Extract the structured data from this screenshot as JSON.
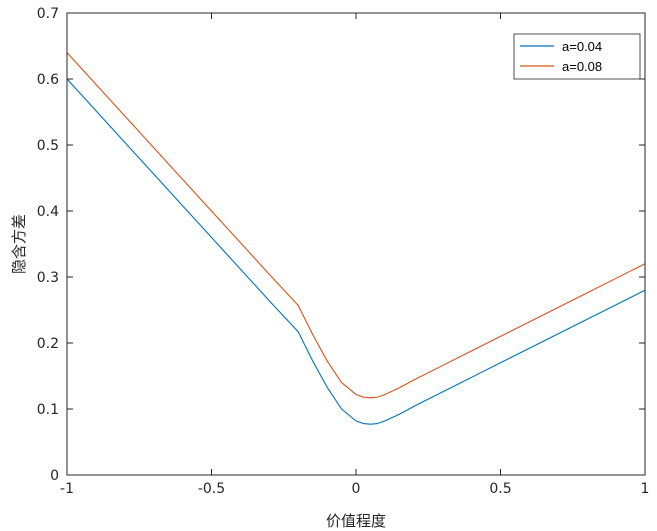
{
  "chart_data": {
    "type": "line",
    "title": "",
    "xlabel": "价值程度",
    "ylabel": "隐含方差",
    "xlim": [
      -1,
      1
    ],
    "ylim": [
      0,
      0.7
    ],
    "xticks": [
      "-1",
      "-0.5",
      "0",
      "0.5",
      "1"
    ],
    "yticks": [
      "0",
      "0.1",
      "0.2",
      "0.3",
      "0.4",
      "0.5",
      "0.6",
      "0.7"
    ],
    "grid": false,
    "legend_position": "top-right",
    "series": [
      {
        "name": "a=0.04",
        "color": "#0072BD",
        "x": [
          -1.0,
          -0.9,
          -0.8,
          -0.7,
          -0.6,
          -0.5,
          -0.4,
          -0.3,
          -0.2,
          -0.15,
          -0.1,
          -0.05,
          0.0,
          0.025,
          0.05,
          0.075,
          0.1,
          0.15,
          0.2,
          0.3,
          0.4,
          0.5,
          0.6,
          0.7,
          0.8,
          0.9,
          1.0
        ],
        "y": [
          0.6,
          0.552,
          0.504,
          0.456,
          0.408,
          0.36,
          0.312,
          0.264,
          0.217,
          0.173,
          0.133,
          0.1,
          0.082,
          0.078,
          0.077,
          0.078,
          0.082,
          0.092,
          0.104,
          0.126,
          0.148,
          0.17,
          0.192,
          0.214,
          0.236,
          0.258,
          0.28
        ]
      },
      {
        "name": "a=0.08",
        "color": "#D95319",
        "x": [
          -1.0,
          -0.9,
          -0.8,
          -0.7,
          -0.6,
          -0.5,
          -0.4,
          -0.3,
          -0.2,
          -0.15,
          -0.1,
          -0.05,
          0.0,
          0.025,
          0.05,
          0.075,
          0.1,
          0.15,
          0.2,
          0.3,
          0.4,
          0.5,
          0.6,
          0.7,
          0.8,
          0.9,
          1.0
        ],
        "y": [
          0.64,
          0.592,
          0.544,
          0.496,
          0.448,
          0.4,
          0.352,
          0.304,
          0.257,
          0.213,
          0.173,
          0.14,
          0.122,
          0.118,
          0.117,
          0.118,
          0.122,
          0.132,
          0.144,
          0.166,
          0.188,
          0.21,
          0.232,
          0.254,
          0.276,
          0.298,
          0.32
        ]
      }
    ]
  }
}
